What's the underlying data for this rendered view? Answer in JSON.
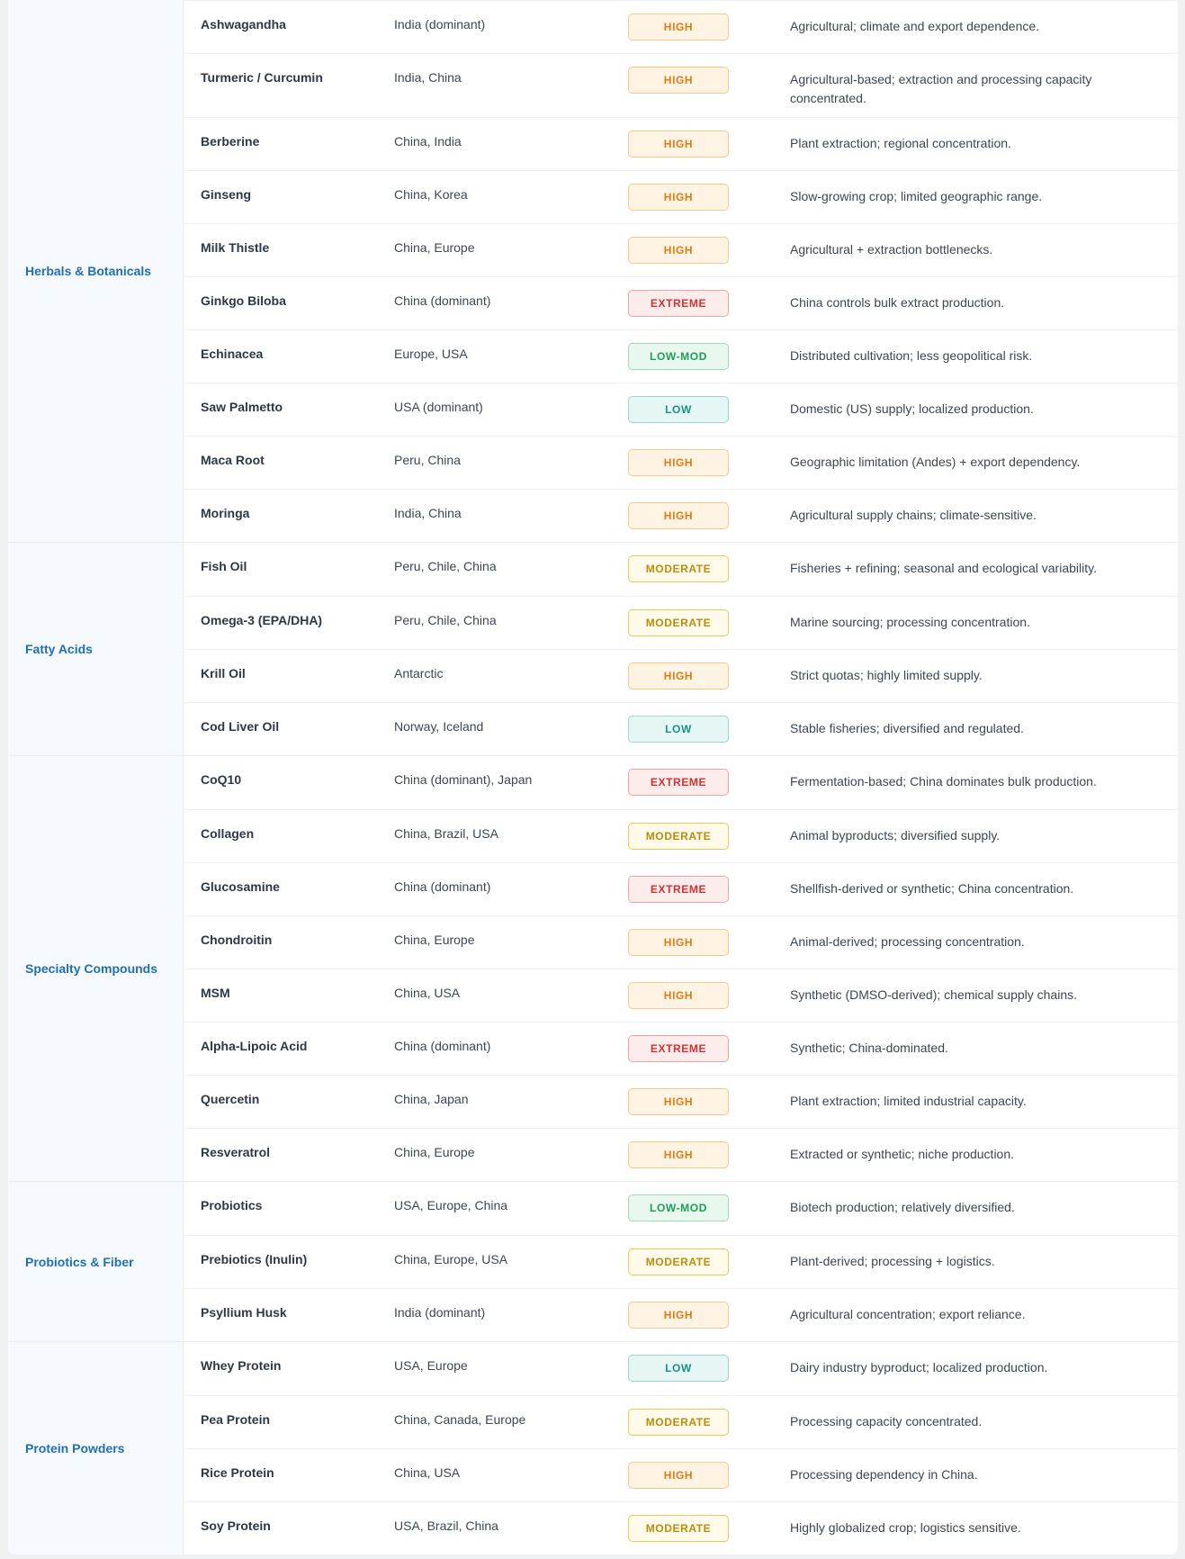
{
  "groups": [
    {
      "category": "Herbals & Botanicals",
      "rows": [
        {
          "name": "Ashwagandha",
          "region": "India (dominant)",
          "risk": "HIGH",
          "notes": "Agricultural; climate and export dependence."
        },
        {
          "name": "Turmeric / Curcumin",
          "region": "India, China",
          "risk": "HIGH",
          "notes": "Agricultural-based; extraction and processing capacity concentrated."
        },
        {
          "name": "Berberine",
          "region": "China, India",
          "risk": "HIGH",
          "notes": "Plant extraction; regional concentration."
        },
        {
          "name": "Ginseng",
          "region": "China, Korea",
          "risk": "HIGH",
          "notes": "Slow-growing crop; limited geographic range."
        },
        {
          "name": "Milk Thistle",
          "region": "China, Europe",
          "risk": "HIGH",
          "notes": "Agricultural + extraction bottlenecks."
        },
        {
          "name": "Ginkgo Biloba",
          "region": "China (dominant)",
          "risk": "EXTREME",
          "notes": "China controls bulk extract production."
        },
        {
          "name": "Echinacea",
          "region": "Europe, USA",
          "risk": "LOW-MOD",
          "notes": "Distributed cultivation; less geopolitical risk."
        },
        {
          "name": "Saw Palmetto",
          "region": "USA (dominant)",
          "risk": "LOW",
          "notes": "Domestic (US) supply; localized production."
        },
        {
          "name": "Maca Root",
          "region": "Peru, China",
          "risk": "HIGH",
          "notes": "Geographic limitation (Andes) + export dependency."
        },
        {
          "name": "Moringa",
          "region": "India, China",
          "risk": "HIGH",
          "notes": "Agricultural supply chains; climate-sensitive."
        }
      ]
    },
    {
      "category": "Fatty Acids",
      "rows": [
        {
          "name": "Fish Oil",
          "region": "Peru, Chile, China",
          "risk": "MODERATE",
          "notes": "Fisheries + refining; seasonal and ecological variability."
        },
        {
          "name": "Omega-3 (EPA/DHA)",
          "region": "Peru, Chile, China",
          "risk": "MODERATE",
          "notes": "Marine sourcing; processing concentration."
        },
        {
          "name": "Krill Oil",
          "region": "Antarctic",
          "risk": "HIGH",
          "notes": "Strict quotas; highly limited supply."
        },
        {
          "name": "Cod Liver Oil",
          "region": "Norway, Iceland",
          "risk": "LOW",
          "notes": "Stable fisheries; diversified and regulated."
        }
      ]
    },
    {
      "category": "Specialty Compounds",
      "rows": [
        {
          "name": "CoQ10",
          "region": "China (dominant), Japan",
          "risk": "EXTREME",
          "notes": "Fermentation-based; China dominates bulk production."
        },
        {
          "name": "Collagen",
          "region": "China, Brazil, USA",
          "risk": "MODERATE",
          "notes": "Animal byproducts; diversified supply."
        },
        {
          "name": "Glucosamine",
          "region": "China (dominant)",
          "risk": "EXTREME",
          "notes": "Shellfish-derived or synthetic; China concentration."
        },
        {
          "name": "Chondroitin",
          "region": "China, Europe",
          "risk": "HIGH",
          "notes": "Animal-derived; processing concentration."
        },
        {
          "name": "MSM",
          "region": "China, USA",
          "risk": "HIGH",
          "notes": "Synthetic (DMSO-derived); chemical supply chains."
        },
        {
          "name": "Alpha-Lipoic Acid",
          "region": "China (dominant)",
          "risk": "EXTREME",
          "notes": "Synthetic; China-dominated."
        },
        {
          "name": "Quercetin",
          "region": "China, Japan",
          "risk": "HIGH",
          "notes": "Plant extraction; limited industrial capacity."
        },
        {
          "name": "Resveratrol",
          "region": "China, Europe",
          "risk": "HIGH",
          "notes": "Extracted or synthetic; niche production."
        }
      ]
    },
    {
      "category": "Probiotics & Fiber",
      "rows": [
        {
          "name": "Probiotics",
          "region": "USA, Europe, China",
          "risk": "LOW-MOD",
          "notes": "Biotech production; relatively diversified."
        },
        {
          "name": "Prebiotics (Inulin)",
          "region": "China, Europe, USA",
          "risk": "MODERATE",
          "notes": "Plant-derived; processing + logistics."
        },
        {
          "name": "Psyllium Husk",
          "region": "India (dominant)",
          "risk": "HIGH",
          "notes": "Agricultural concentration; export reliance."
        }
      ]
    },
    {
      "category": "Protein Powders",
      "rows": [
        {
          "name": "Whey Protein",
          "region": "USA, Europe",
          "risk": "LOW",
          "notes": "Dairy industry byproduct; localized production."
        },
        {
          "name": "Pea Protein",
          "region": "China, Canada, Europe",
          "risk": "MODERATE",
          "notes": "Processing capacity concentrated."
        },
        {
          "name": "Rice Protein",
          "region": "China, USA",
          "risk": "HIGH",
          "notes": "Processing dependency in China."
        },
        {
          "name": "Soy Protein",
          "region": "USA, Brazil, China",
          "risk": "MODERATE",
          "notes": "Highly globalized crop; logistics sensitive."
        }
      ]
    }
  ]
}
